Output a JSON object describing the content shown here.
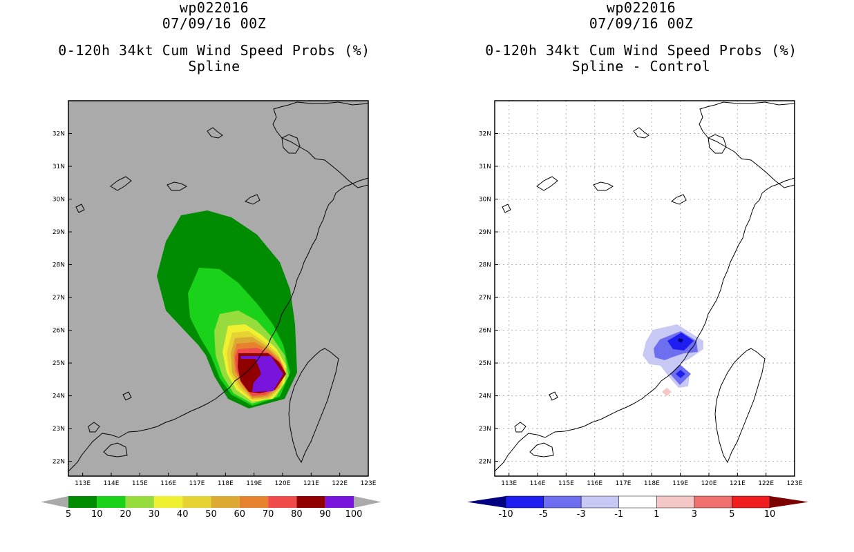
{
  "left_panel": {
    "storm_id": "wp022016",
    "date": "07/09/16 00Z",
    "product": "0-120h 34kt Cum Wind Speed Probs (%)",
    "subtitle": "Spline",
    "colorbar_labels": [
      "5",
      "10",
      "20",
      "30",
      "40",
      "50",
      "60",
      "70",
      "80",
      "90",
      "100"
    ],
    "colorbar_colors": [
      "#008c00",
      "#19d219",
      "#96dc3c",
      "#f0f032",
      "#e6d232",
      "#dcaa32",
      "#e6822d",
      "#f04b4b",
      "#910000",
      "#7814dc"
    ]
  },
  "right_panel": {
    "storm_id": "wp022016",
    "date": "07/09/16 00Z",
    "product": "0-120h 34kt Cum Wind Speed Probs (%)",
    "subtitle": "Spline - Control",
    "colorbar_labels": [
      "-10",
      "-5",
      "-3",
      "-1",
      "1",
      "3",
      "5",
      "10"
    ],
    "colorbar_colors": [
      "#000080",
      "#1e1ef0",
      "#6e6ef0",
      "#c8c8f5",
      "#ffffff",
      "#f5c8c8",
      "#f07070",
      "#f01e1e",
      "#7d0000"
    ]
  },
  "axes": {
    "lat_labels": [
      "32N",
      "31N",
      "30N",
      "29N",
      "28N",
      "27N",
      "26N",
      "25N",
      "24N",
      "23N",
      "22N"
    ],
    "lon_labels": [
      "113E",
      "114E",
      "115E",
      "116E",
      "117E",
      "118E",
      "119E",
      "120E",
      "121E",
      "122E",
      "123E"
    ],
    "lat_range": [
      21.55,
      33.0
    ],
    "lon_range": [
      112.5,
      123.0
    ]
  },
  "colors": {
    "land_background": "#aaaaaa",
    "coastline": "#000000"
  }
}
